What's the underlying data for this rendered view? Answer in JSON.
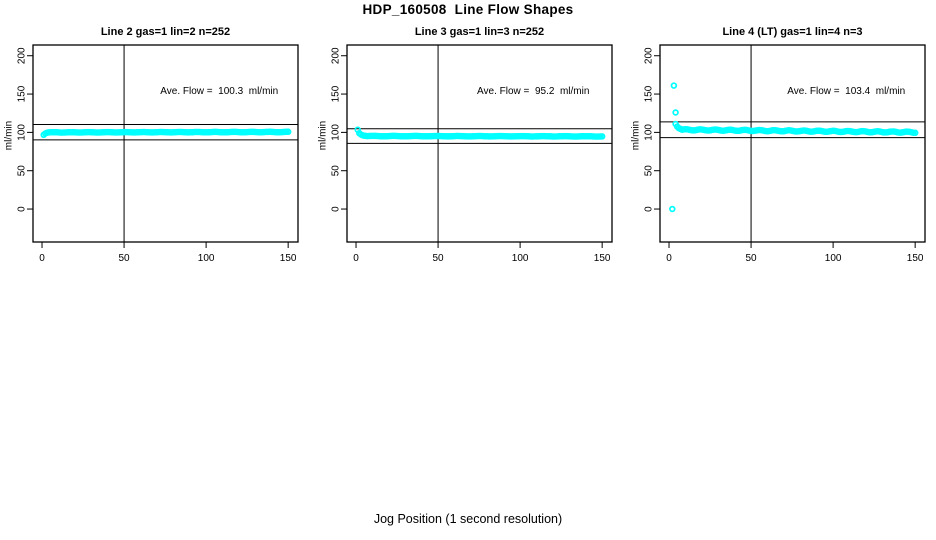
{
  "page_title": "HDP_160508  Line Flow Shapes",
  "x_axis_label": "Jog Position (1 second resolution)",
  "colors": {
    "points": "#00FFFF",
    "axis": "#000000",
    "background": "#FFFFFF"
  },
  "chart_data": [
    {
      "type": "scatter",
      "title": "Line 2 gas=1 lin=2 n=252",
      "annotation": "Ave. Flow =  100.3  ml/min",
      "ave_flow": 100.3,
      "ave_flow_units": "ml/min",
      "ylabel": "ml/min",
      "x_ticks": [
        0,
        50,
        100,
        150
      ],
      "y_ticks": [
        0,
        50,
        100,
        150,
        200
      ],
      "xlim": [
        -5.5,
        156
      ],
      "ylim": [
        -43,
        214
      ],
      "grid": false,
      "vline_x": 50,
      "hlines_y": [
        90.3,
        110.3
      ],
      "points": [
        [
          1,
          96.8
        ],
        [
          2,
          98.5
        ],
        [
          3,
          99.4
        ]
      ],
      "band": {
        "x_from": 4,
        "x_to": 150,
        "x_step": 1,
        "y_from": 100.0,
        "y_to": 100.5,
        "wave_amp": 0.25,
        "wave_period": 11
      }
    },
    {
      "type": "scatter",
      "title": "Line 3 gas=1 lin=3 n=252",
      "annotation": "Ave. Flow =  95.2  ml/min",
      "ave_flow": 95.2,
      "ave_flow_units": "ml/min",
      "ylabel": "ml/min",
      "x_ticks": [
        0,
        50,
        100,
        150
      ],
      "y_ticks": [
        0,
        50,
        100,
        150,
        200
      ],
      "xlim": [
        -5.5,
        156
      ],
      "ylim": [
        -43,
        214
      ],
      "grid": false,
      "vline_x": 50,
      "hlines_y": [
        85.7,
        104.7
      ],
      "points": [
        [
          1,
          103.5
        ],
        [
          2,
          99.0
        ],
        [
          3,
          97.2
        ],
        [
          4,
          96.2
        ],
        [
          5,
          95.7
        ],
        [
          6,
          95.4
        ]
      ],
      "band": {
        "x_from": 7,
        "x_to": 150,
        "x_step": 1,
        "y_from": 95.2,
        "y_to": 94.8,
        "wave_amp": 0.25,
        "wave_period": 13
      }
    },
    {
      "type": "scatter",
      "title": "Line 4 (LT) gas=1 lin=4 n=3",
      "annotation": "Ave. Flow =  103.4  ml/min",
      "ave_flow": 103.4,
      "ave_flow_units": "ml/min",
      "ylabel": "ml/min",
      "x_ticks": [
        0,
        50,
        100,
        150
      ],
      "y_ticks": [
        0,
        50,
        100,
        150,
        200
      ],
      "xlim": [
        -5.5,
        156
      ],
      "ylim": [
        -43,
        214
      ],
      "grid": false,
      "vline_x": 50,
      "hlines_y": [
        93.1,
        113.7
      ],
      "points": [
        [
          2,
          0
        ],
        [
          3,
          161
        ],
        [
          4,
          126
        ],
        [
          4,
          111
        ],
        [
          5,
          107.5
        ],
        [
          6,
          105.5
        ],
        [
          7,
          104.5
        ]
      ],
      "band": {
        "x_from": 8,
        "x_to": 150,
        "x_step": 1,
        "y_from": 103.5,
        "y_to": 100.2,
        "wave_amp": 0.7,
        "wave_period": 9
      }
    }
  ]
}
